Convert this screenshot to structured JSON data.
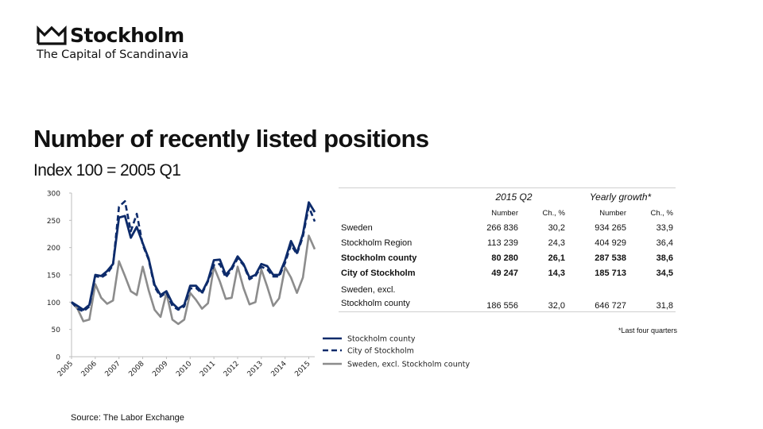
{
  "brand": {
    "name": "Stockholm",
    "tagline": "The Capital of Scandinavia",
    "icon": "crown-icon"
  },
  "page": {
    "title": "Number of recently listed positions",
    "subtitle": "Index 100 = 2005 Q1",
    "source": "Source: The Labor Exchange",
    "footnote": "*Last four quarters"
  },
  "table": {
    "group_headers": [
      "2015 Q2",
      "Yearly growth*"
    ],
    "col_headers": [
      "Number",
      "Ch., %",
      "Number",
      "Ch., %"
    ],
    "rows": [
      {
        "label": "Sweden",
        "label2": "",
        "values": [
          "266 836",
          "30,2",
          "934 265",
          "33,9"
        ],
        "bold": false
      },
      {
        "label": "Stockholm Region",
        "label2": "",
        "values": [
          "113 239",
          "24,3",
          "404 929",
          "36,4"
        ],
        "bold": false
      },
      {
        "label": "Stockholm county",
        "label2": "",
        "values": [
          "80 280",
          "26,1",
          "287 538",
          "38,6"
        ],
        "bold": true
      },
      {
        "label": "City of Stockholm",
        "label2": "",
        "values": [
          "49 247",
          "14,3",
          "185 713",
          "34,5"
        ],
        "bold": true
      },
      {
        "label": "Sweden, excl.",
        "label2": "Stockholm county",
        "values": [
          "186 556",
          "32,0",
          "646 727",
          "31,8"
        ],
        "bold": false
      }
    ]
  },
  "chart_data": {
    "type": "line",
    "title": "",
    "xlabel": "",
    "ylabel": "",
    "ylim": [
      0,
      300
    ],
    "yticks": [
      0,
      50,
      100,
      150,
      200,
      250,
      300
    ],
    "grid": false,
    "legend_position": "bottom-right",
    "xtick_labels": [
      "2005",
      "2006",
      "2007",
      "2008",
      "2009",
      "2010",
      "2011",
      "2012",
      "2013",
      "2014",
      "2015"
    ],
    "x_start_year": 2005,
    "series": [
      {
        "name": "Stockholm county",
        "color": "#0d2b6b",
        "style": "solid",
        "values": [
          100,
          93,
          86,
          95,
          150,
          148,
          157,
          170,
          255,
          258,
          218,
          238,
          208,
          180,
          132,
          113,
          120,
          98,
          88,
          95,
          130,
          130,
          118,
          140,
          177,
          178,
          150,
          163,
          184,
          170,
          145,
          150,
          170,
          166,
          150,
          150,
          177,
          212,
          190,
          225,
          283,
          265
        ]
      },
      {
        "name": "City of Stockholm",
        "color": "#0d2b6b",
        "style": "dashed",
        "values": [
          100,
          88,
          83,
          92,
          148,
          145,
          152,
          168,
          275,
          285,
          230,
          262,
          205,
          178,
          128,
          110,
          118,
          93,
          86,
          92,
          125,
          126,
          116,
          138,
          168,
          170,
          145,
          160,
          180,
          168,
          142,
          148,
          165,
          160,
          147,
          147,
          172,
          205,
          188,
          220,
          275,
          248
        ]
      },
      {
        "name": "Sweden, excl. Stockholm county",
        "color": "#8c8c8c",
        "style": "solid",
        "values": [
          100,
          88,
          65,
          68,
          133,
          108,
          97,
          103,
          175,
          148,
          120,
          113,
          165,
          122,
          86,
          73,
          117,
          68,
          60,
          68,
          117,
          104,
          88,
          98,
          165,
          138,
          106,
          108,
          165,
          126,
          96,
          100,
          160,
          128,
          93,
          107,
          164,
          145,
          117,
          145,
          222,
          197
        ]
      }
    ]
  }
}
